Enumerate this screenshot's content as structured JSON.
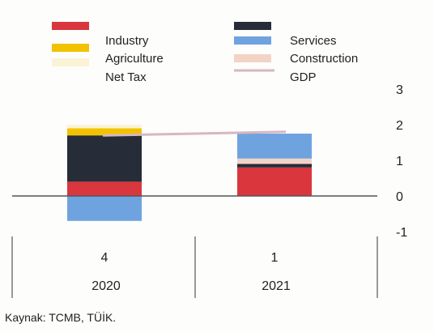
{
  "chart_data": {
    "type": "bar",
    "stacked": true,
    "categories": [
      "4",
      "1"
    ],
    "category_groups": [
      "2020",
      "2021"
    ],
    "series": [
      {
        "name": "Industry",
        "color": "#d9363e",
        "values": [
          0.4,
          0.8
        ]
      },
      {
        "name": "Agriculture",
        "color": "#f2c200",
        "values": [
          0.2,
          0.0
        ]
      },
      {
        "name": "Net Tax",
        "color": "#fbf3d6",
        "values": [
          0.1,
          0.0
        ]
      },
      {
        "name": "Services",
        "color": "#6fa3e0",
        "values": [
          -0.7,
          0.7
        ]
      },
      {
        "name": "Construction",
        "color": "#f3d3c6",
        "values": [
          0.0,
          0.15
        ]
      },
      {
        "name": "",
        "color": "#262d38",
        "values": [
          1.3,
          0.1
        ]
      }
    ],
    "line": {
      "name": "GDP",
      "color": "#d9b6c0",
      "values": [
        1.7,
        1.8
      ]
    },
    "ylim": [
      -1,
      3
    ],
    "yticks": [
      3,
      2,
      1,
      0,
      -1
    ],
    "legend_position": "top",
    "source": "Kaynak: TCMB, TÜİK."
  },
  "colors": {
    "axis": "#555555",
    "grid": "none"
  }
}
